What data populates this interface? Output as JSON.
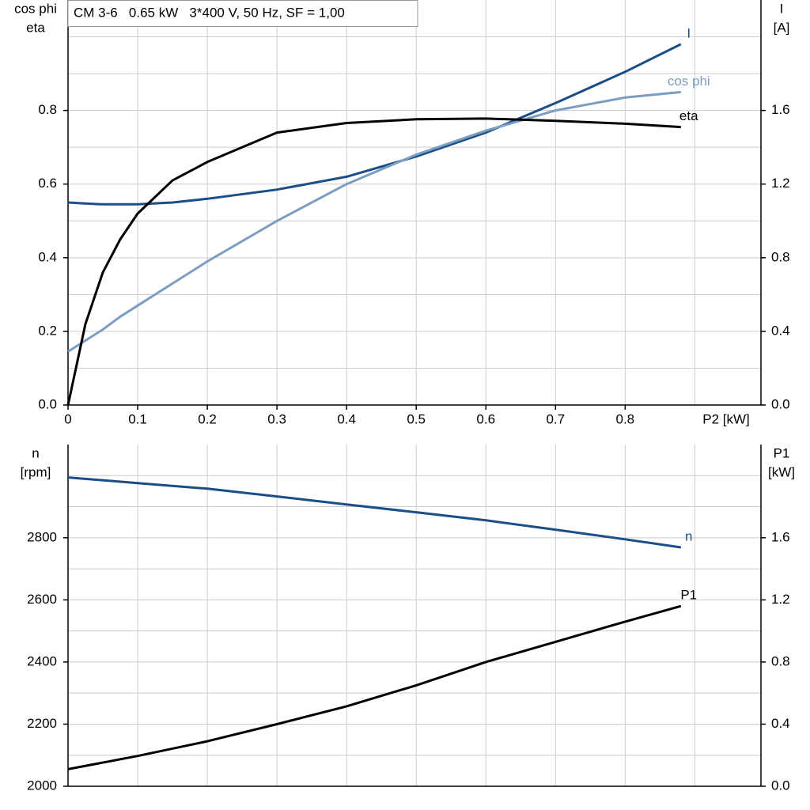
{
  "chart_data": [
    {
      "type": "line",
      "title": "CM 3-6   0.65 kW   3*400 V, 50 Hz, SF = 1,00",
      "y_label": [
        "cos phi",
        "eta"
      ],
      "y2_label": [
        "I",
        "[A]"
      ],
      "x_label": "P2 [kW]",
      "xlim": [
        0,
        0.995
      ],
      "xticks": [
        0,
        0.1,
        0.2,
        0.3,
        0.4,
        0.5,
        0.6,
        0.7,
        0.8
      ],
      "xgrid": [
        0.1,
        0.2,
        0.3,
        0.4,
        0.5,
        0.6,
        0.7,
        0.8,
        0.9
      ],
      "ylim": [
        0,
        1.1
      ],
      "yticks": [
        {
          "value": 0,
          "label": "0.0"
        },
        0.2,
        0.4,
        0.6,
        0.8
      ],
      "ygrid": [
        0.1,
        0.2,
        0.3,
        0.4,
        0.5,
        0.6,
        0.7,
        0.8,
        0.9,
        1.0
      ],
      "y2lim": [
        0,
        2.2
      ],
      "y2ticks": [
        {
          "value": 0,
          "label": "0.0"
        },
        0.4,
        0.8,
        1.2,
        1.6
      ],
      "x": [
        0,
        0.025,
        0.05,
        0.075,
        0.1,
        0.15,
        0.2,
        0.3,
        0.4,
        0.5,
        0.6,
        0.7,
        0.8,
        0.88
      ],
      "series": [
        {
          "name": "I",
          "color": "#1a4e87",
          "axis": "y2",
          "values": [
            1.1,
            1.095,
            1.09,
            1.09,
            1.09,
            1.1,
            1.12,
            1.17,
            1.24,
            1.35,
            1.48,
            1.64,
            1.81,
            1.96
          ]
        },
        {
          "name": "cos phi",
          "color": "#7b9dbf",
          "axis": "y",
          "values": [
            0.145,
            0.175,
            0.205,
            0.24,
            0.27,
            0.33,
            0.39,
            0.5,
            0.6,
            0.68,
            0.745,
            0.8,
            0.835,
            0.85
          ]
        },
        {
          "name": "eta",
          "color": "#000000",
          "axis": "y",
          "values": [
            0,
            0.22,
            0.36,
            0.45,
            0.52,
            0.61,
            0.66,
            0.74,
            0.766,
            0.776,
            0.778,
            0.772,
            0.764,
            0.755
          ]
        }
      ]
    },
    {
      "type": "line",
      "y_label": [
        "n",
        "[rpm]"
      ],
      "y2_label": [
        "P1",
        "[kW]"
      ],
      "xlim": [
        0,
        0.995
      ],
      "xgrid": [
        0.1,
        0.2,
        0.3,
        0.4,
        0.5,
        0.6,
        0.7,
        0.8,
        0.9
      ],
      "ylim": [
        2000,
        3100
      ],
      "yticks": [
        2000,
        2200,
        2400,
        2600,
        2800
      ],
      "ygrid": [
        2100,
        2200,
        2300,
        2400,
        2500,
        2600,
        2700,
        2800,
        2900,
        3000
      ],
      "y2lim": [
        0,
        2.2
      ],
      "y2ticks": [
        {
          "value": 0,
          "label": "0.0"
        },
        0.4,
        0.8,
        1.2,
        1.6
      ],
      "x": [
        0,
        0.1,
        0.2,
        0.3,
        0.4,
        0.5,
        0.6,
        0.7,
        0.8,
        0.88
      ],
      "series": [
        {
          "name": "n",
          "color": "#1a4e87",
          "axis": "y",
          "values": [
            2994,
            2976,
            2958,
            2933,
            2907,
            2882,
            2856,
            2826,
            2795,
            2769
          ]
        },
        {
          "name": "P1",
          "color": "#000000",
          "axis": "y2",
          "values": [
            0.11,
            0.195,
            0.29,
            0.4,
            0.515,
            0.65,
            0.8,
            0.93,
            1.06,
            1.16
          ]
        }
      ]
    }
  ]
}
